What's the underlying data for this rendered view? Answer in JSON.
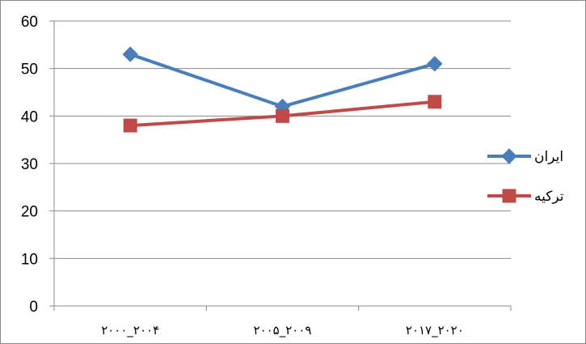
{
  "chart_data": {
    "type": "line",
    "categories": [
      "۲۰۰۰_۲۰۰۴",
      "۲۰۰۵_۲۰۰۹",
      "۲۰۱۷_۲۰۲۰"
    ],
    "series": [
      {
        "name": "ایران",
        "values": [
          53,
          42,
          51
        ],
        "color": "#4a7ebb",
        "marker": "diamond"
      },
      {
        "name": "ترکیه",
        "values": [
          38,
          40,
          43
        ],
        "color": "#be4b48",
        "marker": "square"
      }
    ],
    "ylim": [
      0,
      60
    ],
    "yticks": [
      "0",
      "10",
      "20",
      "30",
      "40",
      "50",
      "60"
    ],
    "grid": true,
    "legend": "right",
    "title": "",
    "xlabel": "",
    "ylabel": ""
  }
}
